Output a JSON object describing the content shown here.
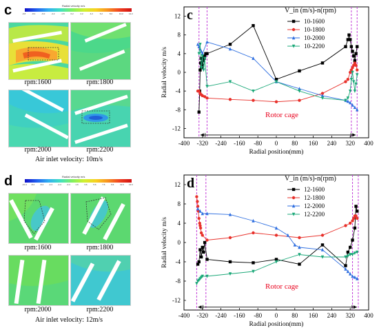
{
  "panel_c_left": {
    "letter": "c",
    "colorbar_title": "Radial velocity m/s",
    "colorbar_ticks": [
      "-9.8",
      "-8.4",
      "-6.0",
      "-4.2",
      "-1.8",
      "0.2",
      "2.2",
      "4.2",
      "6.2",
      "8.2",
      "10.2",
      "12.2"
    ],
    "captions": [
      "rpm:1600",
      "rpm:1800",
      "rpm:2000",
      "rpm:2200"
    ],
    "inlet": "Air inlet velocity: 10m/s"
  },
  "panel_d_left": {
    "letter": "d",
    "colorbar_title": "Radial velocity m/s",
    "colorbar_ticks": [
      "-10.4",
      "-8.4",
      "-6.4",
      "-4.4",
      "-2.4",
      "-0.4",
      "1.6",
      "3.6",
      "5.6",
      "7.6",
      "9.6",
      "11.6",
      "13.6"
    ],
    "captions": [
      "rpm:1600",
      "rpm:1800",
      "rpm:2000",
      "rpm:2200"
    ],
    "inlet": "Air inlet velocity: 12m/s"
  },
  "colors": {
    "s1600": "#000000",
    "s1800": "#e8302a",
    "s2000": "#2f6fe0",
    "s2200": "#1aa878",
    "dashed_line": "#c23bd8",
    "rotor_cage": "#e8001c"
  },
  "chart_data": [
    {
      "type": "line",
      "panel": "c",
      "ylabel": "Radial velocity m/s",
      "xlabel": "Radial position(mm)",
      "xlim": [
        -400,
        400
      ],
      "ylim": [
        -14,
        14
      ],
      "xticks": [
        -400,
        -320,
        -240,
        -160,
        -80,
        0,
        80,
        160,
        240,
        320,
        400
      ],
      "yticks": [
        -12,
        -8,
        -4,
        0,
        4,
        8,
        12
      ],
      "legend_title": "V_in (m/s)-n(rpm)",
      "annotation": "Rotor cage",
      "dashed_lines_x": [
        -335,
        -300,
        325,
        350
      ],
      "series": [
        {
          "name": "10-1600",
          "color_key": "s1600",
          "marker": "square",
          "x": [
            -335,
            -332,
            -330,
            -328,
            -326,
            -324,
            -322,
            -320,
            -318,
            -316,
            -314,
            -312,
            -310,
            -306,
            -300,
            -200,
            -100,
            0,
            100,
            200,
            300,
            310,
            315,
            320,
            325,
            330,
            335,
            340,
            345,
            350
          ],
          "y": [
            -8.5,
            -4.0,
            0.5,
            2.0,
            3.0,
            1.0,
            2.0,
            1.5,
            3.0,
            2.5,
            3.5,
            3.0,
            3.5,
            4.0,
            4.0,
            6.0,
            10.0,
            -1.5,
            0.3,
            2.0,
            5.5,
            7.0,
            8.0,
            7.0,
            5.5,
            4.5,
            3.5,
            2.5,
            4.0,
            5.5
          ]
        },
        {
          "name": "10-1800",
          "color_key": "s1800",
          "marker": "circle",
          "x": [
            -340,
            -335,
            -330,
            -325,
            -320,
            -310,
            -300,
            -200,
            -100,
            0,
            100,
            200,
            300,
            310,
            320,
            325,
            330,
            335,
            340,
            345,
            350
          ],
          "y": [
            -4.0,
            -4.0,
            -4.5,
            -4.8,
            -5.0,
            -5.2,
            -5.5,
            -5.8,
            -6.0,
            -6.3,
            -6.0,
            -4.5,
            -2.0,
            -1.5,
            0.0,
            0.5,
            1.0,
            1.5,
            2.0,
            1.5,
            0.5
          ]
        },
        {
          "name": "10-2000",
          "color_key": "s2000",
          "marker": "triangle-up",
          "x": [
            -340,
            -335,
            -330,
            -325,
            -320,
            -300,
            -200,
            -100,
            0,
            100,
            200,
            300,
            310,
            320,
            330,
            340,
            350
          ],
          "y": [
            6.0,
            5.5,
            5.0,
            4.5,
            4.0,
            6.5,
            5.0,
            3.0,
            -2.0,
            -3.5,
            -5.0,
            -6.0,
            -6.2,
            -6.5,
            -7.0,
            -7.5,
            -8.0
          ]
        },
        {
          "name": "10-2200",
          "color_key": "s2200",
          "marker": "triangle-down",
          "x": [
            -335,
            -330,
            -325,
            -320,
            -315,
            -310,
            -300,
            -200,
            -100,
            0,
            100,
            200,
            300,
            310,
            320,
            325,
            330,
            335,
            340,
            345,
            350
          ],
          "y": [
            4.0,
            6.0,
            1.0,
            3.5,
            0.5,
            3.0,
            -3.0,
            -2.0,
            -4.0,
            -2.0,
            -4.0,
            -5.5,
            -6.0,
            -5.5,
            -4.0,
            -1.5,
            0.0,
            -2.0,
            -4.0,
            -2.5,
            -0.5
          ]
        }
      ]
    },
    {
      "type": "line",
      "panel": "d",
      "ylabel": "Radial velocity m/s",
      "xlabel": "Radial position(mm)",
      "xlim": [
        -400,
        400
      ],
      "ylim": [
        -14,
        14
      ],
      "xticks": [
        -400,
        -320,
        -240,
        -160,
        -80,
        0,
        80,
        160,
        240,
        320,
        400
      ],
      "yticks": [
        -12,
        -8,
        -4,
        0,
        4,
        8,
        12
      ],
      "legend_title": "V_in (m/s)-n(rpm)",
      "annotation": "Rotor cage",
      "dashed_lines_x": [
        -345,
        -305,
        330,
        355
      ],
      "series": [
        {
          "name": "12-1600",
          "color_key": "s1600",
          "marker": "square",
          "x": [
            -340,
            -335,
            -330,
            -325,
            -320,
            -315,
            -310,
            -300,
            -200,
            -100,
            0,
            100,
            200,
            300,
            310,
            320,
            330,
            340,
            345,
            350
          ],
          "y": [
            -4.5,
            -4.0,
            -1.5,
            -3.0,
            -1.0,
            -2.0,
            0.0,
            -3.5,
            -4.0,
            -4.2,
            -3.5,
            -4.5,
            -0.5,
            -4.8,
            -2.0,
            -1.0,
            0.5,
            3.0,
            7.5,
            6.5
          ]
        },
        {
          "name": "12-1800",
          "color_key": "s1800",
          "marker": "circle",
          "x": [
            -345,
            -342,
            -340,
            -338,
            -335,
            -332,
            -330,
            -328,
            -325,
            -320,
            -300,
            -200,
            -100,
            0,
            100,
            200,
            300,
            320,
            330,
            335,
            340,
            345,
            350
          ],
          "y": [
            9.5,
            8.5,
            7.5,
            6.5,
            5.0,
            4.0,
            3.5,
            3.0,
            2.0,
            1.5,
            0.5,
            1.0,
            2.0,
            1.5,
            1.0,
            1.5,
            3.5,
            4.0,
            4.5,
            5.0,
            5.5,
            5.5,
            5.0
          ]
        },
        {
          "name": "12-2000",
          "color_key": "s2000",
          "marker": "triangle-up",
          "x": [
            -340,
            -330,
            -320,
            -300,
            -200,
            -100,
            0,
            50,
            80,
            100,
            200,
            300,
            310,
            320,
            330,
            340,
            350
          ],
          "y": [
            7.0,
            6.5,
            6.0,
            6.0,
            5.8,
            4.5,
            3.0,
            1.5,
            -0.5,
            -1.0,
            -1.5,
            -5.5,
            -6.0,
            -6.5,
            -7.0,
            -7.2,
            -7.5
          ]
        },
        {
          "name": "12-2200",
          "color_key": "s2200",
          "marker": "triangle-down",
          "x": [
            -345,
            -340,
            -335,
            -330,
            -325,
            -320,
            -300,
            -200,
            -100,
            0,
            100,
            200,
            300,
            310,
            320,
            330,
            340,
            350
          ],
          "y": [
            -8.5,
            -8.0,
            -7.8,
            -7.5,
            -7.2,
            -7.0,
            -7.0,
            -6.5,
            -6.0,
            -4.0,
            -2.5,
            -3.0,
            -3.0,
            -2.8,
            -2.5,
            -2.5,
            -2.2,
            -2.0
          ]
        }
      ]
    }
  ]
}
